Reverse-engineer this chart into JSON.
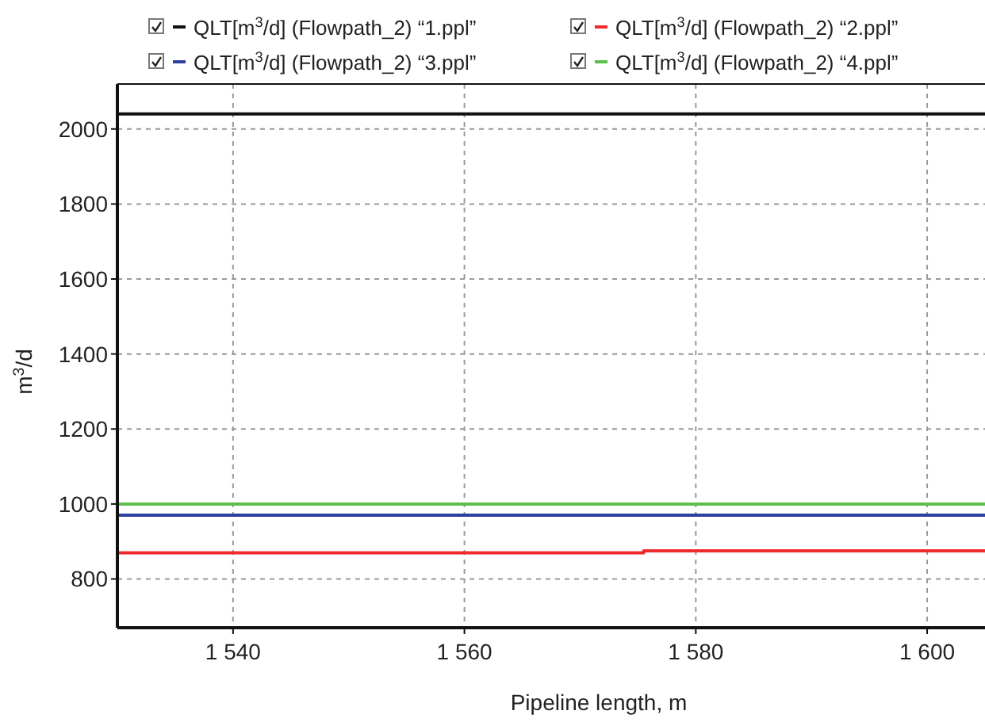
{
  "chart_data": {
    "type": "line",
    "xlabel": "Pipeline length, m",
    "ylabel": "m$^{3}$/d",
    "xlim": [
      1530,
      1605
    ],
    "ylim": [
      670,
      2120
    ],
    "xticks": [
      {
        "value": 1540,
        "label": "1 540"
      },
      {
        "value": 1560,
        "label": "1 560"
      },
      {
        "value": 1580,
        "label": "1 580"
      },
      {
        "value": 1600,
        "label": "1 600"
      }
    ],
    "yticks": [
      800,
      1000,
      1200,
      1400,
      1600,
      1800,
      2000
    ],
    "grid": true,
    "legend": "top",
    "marker": "none",
    "line_style": "solid",
    "series": [
      {
        "name": "QLT[m$^{3}$/d] (Flowpath_2) “1.ppl”",
        "color": "#111111",
        "x": [
          1530,
          1605
        ],
        "values": [
          2040,
          2040
        ]
      },
      {
        "name": "QLT[m$^{3}$/d] (Flowpath_2) “2.ppl”",
        "color": "#ee2a2a",
        "x": [
          1530,
          1575.5,
          1575.5,
          1605
        ],
        "values": [
          870,
          870,
          875,
          875
        ]
      },
      {
        "name": "QLT[m$^{3}$/d] (Flowpath_2) “3.ppl”",
        "color": "#2b3f9e",
        "x": [
          1530,
          1605
        ],
        "values": [
          970,
          970
        ]
      },
      {
        "name": "QLT[m$^{3}$/d] (Flowpath_2) “4.ppl”",
        "color": "#5cbf4a",
        "x": [
          1530,
          1605
        ],
        "values": [
          1000,
          1000
        ]
      }
    ]
  }
}
